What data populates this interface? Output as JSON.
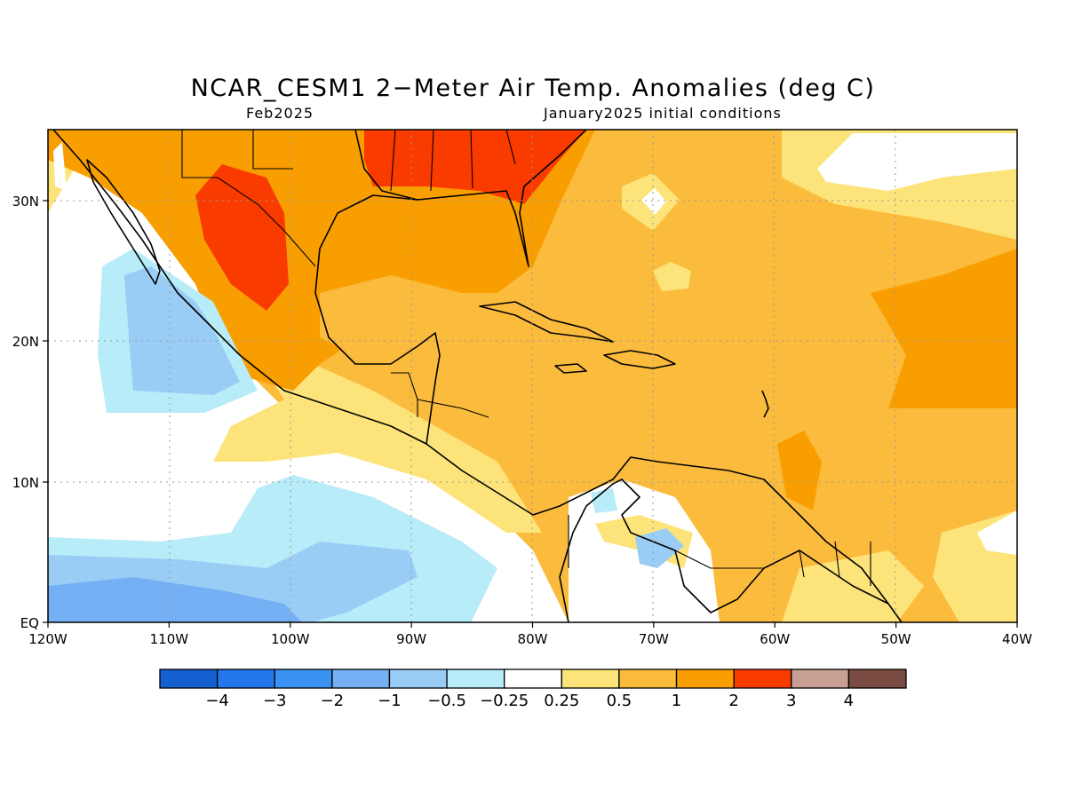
{
  "title": "NCAR_CESM1 2−Meter Air Temp. Anomalies (deg C)",
  "subtitle_left": "Feb2025",
  "subtitle_right": "January2025 initial conditions",
  "axes": {
    "lon_labels": [
      "120W",
      "110W",
      "100W",
      "90W",
      "80W",
      "70W",
      "60W",
      "50W",
      "40W"
    ],
    "lat_labels": [
      "EQ",
      "10N",
      "20N",
      "30N"
    ]
  },
  "colorbar": {
    "colors": [
      "#1560d0",
      "#2377eb",
      "#3a93f2",
      "#74b0f3",
      "#9acdf6",
      "#b7ecf8",
      "#ffffff",
      "#fde47a",
      "#fbbb3d",
      "#f99e00",
      "#fa3b00",
      "#c7a093",
      "#7a4b40"
    ],
    "labels": [
      "−4",
      "−3",
      "−2",
      "−1",
      "−0.5",
      "−0.25",
      "0.25",
      "0.5",
      "1",
      "2",
      "3",
      "4"
    ]
  }
}
